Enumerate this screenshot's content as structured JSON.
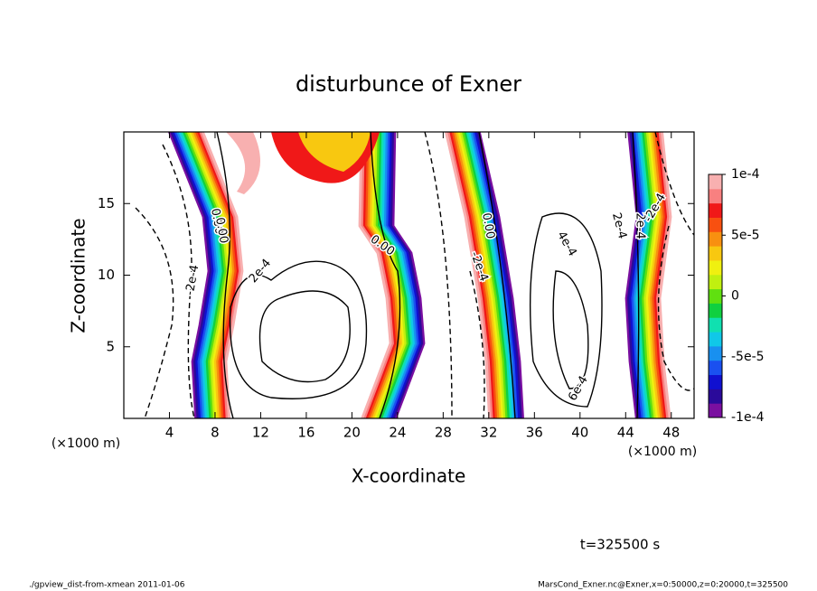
{
  "chart_data": {
    "type": "contour",
    "title": "disturbunce of Exner",
    "x_label": "X-coordinate",
    "y_label": "Z-coordinate",
    "x_unit": "(×1000 m)",
    "xlim": [
      0,
      50
    ],
    "xticks": [
      4,
      8,
      12,
      16,
      20,
      24,
      28,
      32,
      36,
      40,
      44,
      48
    ],
    "ylim": [
      0,
      20
    ],
    "yticks": [
      5,
      10,
      15
    ],
    "colorbar": {
      "lim": [
        -0.0001,
        0.0001
      ],
      "ticks": [
        {
          "value": 0.0001,
          "label": "1e-4"
        },
        {
          "value": 5e-05,
          "label": "5e-5"
        },
        0,
        {
          "value": -5e-05,
          "label": "-5e-5"
        },
        {
          "value": -0.0001,
          "label": "-1e-4"
        }
      ],
      "colors": [
        "#7a0fa0",
        "#2a0a9a",
        "#1010d0",
        "#1a50f0",
        "#1890f0",
        "#10c8e8",
        "#10e0b0",
        "#10d040",
        "#60e010",
        "#c0f010",
        "#f0f010",
        "#f8c810",
        "#f89010",
        "#f85010",
        "#f01818",
        "#f88080",
        "#f8b0b0"
      ]
    },
    "contour_labels": [
      "0.00",
      "0.00",
      "0.00",
      "0.00",
      "2e-4",
      "2e-4",
      "2e-4",
      "-2e-4",
      "-2e-4",
      "4e-4",
      "6e-4",
      "-2e-4"
    ],
    "time_label": "t=325500 s",
    "footer_left": "./gpview_dist-from-xmean  2011-01-06",
    "footer_right": "MarsCond_Exner.nc@Exner,x=0:50000,z=0:20000,t=325500"
  }
}
